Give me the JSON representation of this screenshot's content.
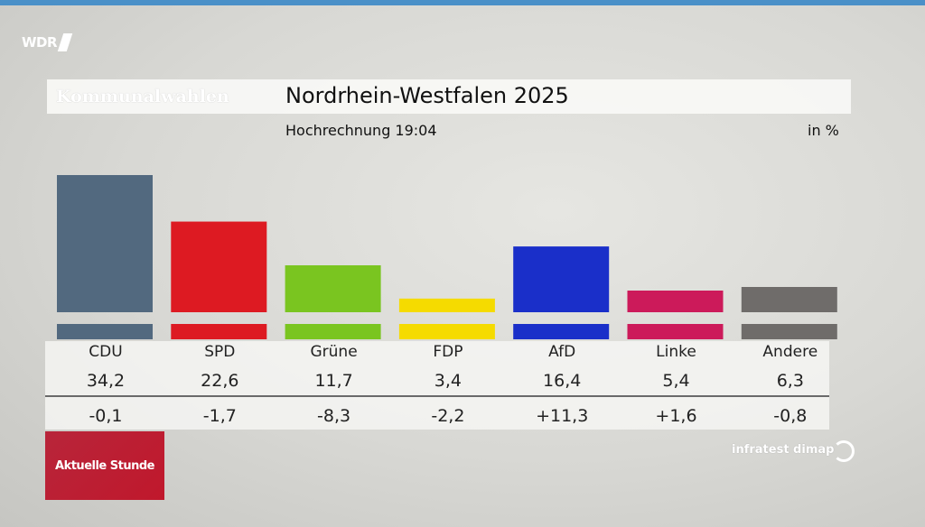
{
  "broadcaster": "WDR",
  "kicker": "Kommunalwahlen",
  "title": "Nordrhein-Westfalen 2025",
  "subtitle": "Hochrechnung 19:04",
  "unit": "in %",
  "footer_badge": "Aktuelle Stunde",
  "source": "infratest dimap",
  "chart_data": {
    "type": "bar",
    "title": "Nordrhein-Westfalen 2025",
    "subtitle": "Hochrechnung 19:04",
    "unit": "in %",
    "categories": [
      "CDU",
      "SPD",
      "Grüne",
      "FDP",
      "AfD",
      "Linke",
      "Andere"
    ],
    "values": [
      34.2,
      22.6,
      11.7,
      3.4,
      16.4,
      5.4,
      6.3
    ],
    "value_labels": [
      "34,2",
      "22,6",
      "11,7",
      "3,4",
      "16,4",
      "5,4",
      "6,3"
    ],
    "change_labels": [
      "-0,1",
      "-1,7",
      "-8,3",
      "-2,2",
      "+11,3",
      "+1,6",
      "-0,8"
    ],
    "changes": [
      -0.1,
      -1.7,
      -8.3,
      -2.2,
      11.3,
      1.6,
      -0.8
    ],
    "colors": [
      "#52697f",
      "#dd1a22",
      "#7ac520",
      "#f5db00",
      "#1a2fc9",
      "#cc1a5a",
      "#6f6c6a"
    ],
    "grid": false
  }
}
